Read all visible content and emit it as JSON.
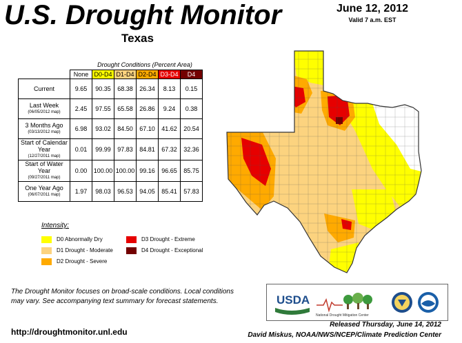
{
  "header": {
    "title": "U.S. Drought Monitor",
    "subtitle": "Texas",
    "date": "June 12, 2012",
    "valid": "Valid 7 a.m. EST"
  },
  "table": {
    "caption": "Drought Conditions (Percent Area)",
    "columns": [
      "None",
      "D0-D4",
      "D1-D4",
      "D2-D4",
      "D3-D4",
      "D4"
    ],
    "column_colors": [
      "#ffffff",
      "#ffff00",
      "#fcd37f",
      "#ffaa00",
      "#e60000",
      "#730000"
    ],
    "rows": [
      {
        "label": "Current",
        "sub": "",
        "values": [
          "9.65",
          "90.35",
          "68.38",
          "26.34",
          "8.13",
          "0.15"
        ]
      },
      {
        "label": "Last Week",
        "sub": "(06/05/2012 map)",
        "values": [
          "2.45",
          "97.55",
          "65.58",
          "26.86",
          "9.24",
          "0.38"
        ]
      },
      {
        "label": "3 Months Ago",
        "sub": "(03/13/2012 map)",
        "values": [
          "6.98",
          "93.02",
          "84.50",
          "67.10",
          "41.62",
          "20.54"
        ]
      },
      {
        "label": "Start of Calendar Year",
        "sub": "(12/27/2011 map)",
        "values": [
          "0.01",
          "99.99",
          "97.83",
          "84.81",
          "67.32",
          "32.36"
        ]
      },
      {
        "label": "Start of Water Year",
        "sub": "(09/27/2011 map)",
        "values": [
          "0.00",
          "100.00",
          "100.00",
          "99.16",
          "96.65",
          "85.75"
        ]
      },
      {
        "label": "One Year Ago",
        "sub": "(06/07/2011 map)",
        "values": [
          "1.97",
          "98.03",
          "96.53",
          "94.05",
          "85.41",
          "57.83"
        ]
      }
    ]
  },
  "legend": {
    "title": "Intensity:",
    "items": [
      {
        "label": "D0 Abnormally Dry",
        "color": "#ffff00"
      },
      {
        "label": "D1 Drought - Moderate",
        "color": "#fcd37f"
      },
      {
        "label": "D2 Drought - Severe",
        "color": "#ffaa00"
      },
      {
        "label": "D3 Drought - Extreme",
        "color": "#e60000"
      },
      {
        "label": "D4 Drought - Exceptional",
        "color": "#730000"
      }
    ]
  },
  "note": "The Drought Monitor focuses on broad-scale conditions. Local conditions may vary. See accompanying text summary for forecast statements.",
  "url": "http://droughtmonitor.unl.edu",
  "logos": {
    "usda": "USDA",
    "ndmc": "National Drought Mitigation Center"
  },
  "released": "Released Thursday, June 14, 2012",
  "author": "David Miskus, NOAA/NWS/NCEP/Climate Prediction Center"
}
